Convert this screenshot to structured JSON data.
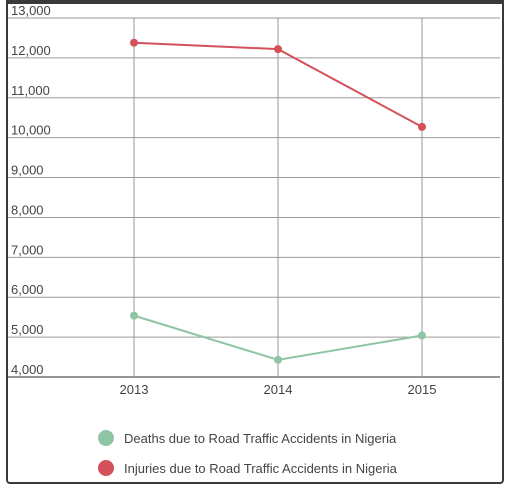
{
  "chart_data": {
    "type": "line",
    "categories": [
      "2013",
      "2014",
      "2015"
    ],
    "series": [
      {
        "name": "Deaths due to Road Traffic Accidents in Nigeria",
        "values": [
          5539,
          4430,
          5040
        ],
        "color": "#8ec5a4"
      },
      {
        "name": "Injuries due to Road Traffic Accidents in Nigeria",
        "values": [
          12380,
          12220,
          10270
        ],
        "color": "#d4505a"
      }
    ],
    "yticks": [
      "13,000",
      "12,000",
      "11,000",
      "10,000",
      "9,000",
      "8,000",
      "7,000",
      "6,000",
      "5,000",
      "4,000"
    ],
    "ylim": [
      4000,
      13000
    ],
    "grid": true,
    "legend": "bottom"
  }
}
